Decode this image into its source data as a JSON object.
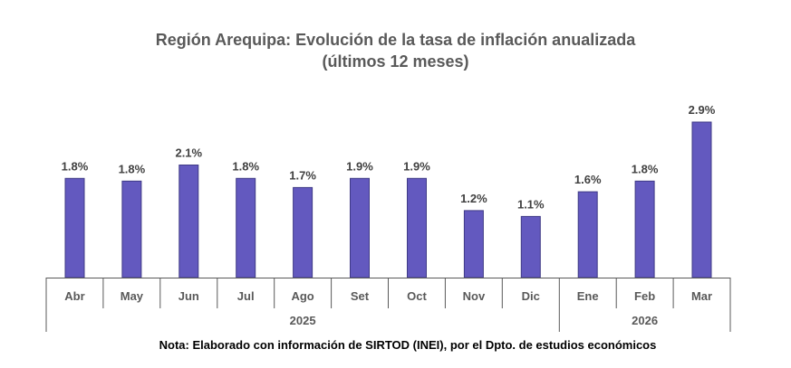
{
  "chart_data": {
    "type": "bar",
    "title": "Región Arequipa: Evolución de la tasa de inflación anualizada",
    "subtitle": "(últimos 12 meses)",
    "categories": [
      "Abr",
      "May",
      "Jun",
      "Jul",
      "Ago",
      "Set",
      "Oct",
      "Nov",
      "Dic",
      "Ene",
      "Feb",
      "Mar"
    ],
    "groups": [
      {
        "label": "2025",
        "start": 0,
        "end": 8
      },
      {
        "label": "2026",
        "start": 9,
        "end": 11
      }
    ],
    "values": [
      1.8,
      1.8,
      2.1,
      1.8,
      1.7,
      1.9,
      1.9,
      1.2,
      1.1,
      1.6,
      1.8,
      2.9
    ],
    "display_values": [
      1.85,
      1.8,
      2.1,
      1.85,
      1.68,
      1.85,
      1.85,
      1.25,
      1.14,
      1.6,
      1.8,
      2.9
    ],
    "data_labels": [
      "1.8%",
      "1.8%",
      "2.1%",
      "1.8%",
      "1.7%",
      "1.9%",
      "1.9%",
      "1.2%",
      "1.1%",
      "1.6%",
      "1.8%",
      "2.9%"
    ],
    "unit": "%",
    "xlabel": "",
    "ylabel": "",
    "ylim": [
      0,
      3.0
    ],
    "grid": false,
    "legend": "none",
    "bar_color": "#6359BF",
    "bar_edge_color": "#3F3A86",
    "label_color": "#404040",
    "axis_color": "#595959"
  },
  "note": "Nota: Elaborado con información de SIRTOD (INEI), por el Dpto. de estudios económicos"
}
